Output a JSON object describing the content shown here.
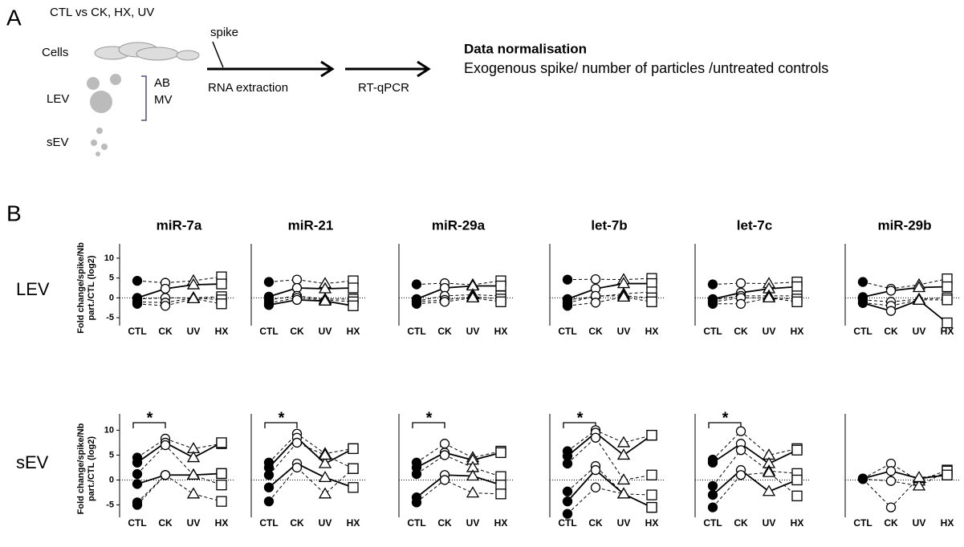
{
  "panel_a": {
    "label": "A",
    "conditions": "CTL vs CK, HX, UV",
    "cells": "Cells",
    "lev": "LEV",
    "sev": "sEV",
    "ab": "AB",
    "mv": "MV",
    "spike": "spike",
    "step1": "RNA extraction",
    "step2": "RT-qPCR",
    "norm_title": "Data normalisation",
    "norm_text": "Exogenous spike/ number of particles /untreated controls"
  },
  "panel_b": {
    "label": "B",
    "rows": [
      "LEV",
      "sEV"
    ]
  },
  "chart_data": [
    {
      "type": "line",
      "title": "miR-7a",
      "categories": [
        "CTL",
        "CK",
        "UV",
        "HX"
      ],
      "markers": [
        "filled-circle",
        "circle",
        "triangle",
        "square"
      ],
      "color": "#000000",
      "ylim": [
        -7,
        12
      ],
      "yticks": [
        -5,
        0,
        5,
        10
      ],
      "ylabel": [
        "Fold change/spike/Nb",
        "part./CTL (log2)"
      ],
      "reference_line": 0,
      "series": [
        {
          "values": [
            4.3,
            3.8,
            4.3,
            5.3
          ],
          "line_style": "dashed"
        },
        {
          "values": [
            0,
            2.3,
            3.3,
            3.5
          ],
          "line_style": "solid"
        },
        {
          "values": [
            -0.3,
            0,
            0,
            0.3
          ],
          "line_style": "dashed"
        },
        {
          "values": [
            -1,
            -1.2,
            0,
            -0.5
          ],
          "line_style": "dashed"
        },
        {
          "values": [
            -1.5,
            -2,
            -0.2,
            -1.5
          ],
          "line_style": "dashed"
        }
      ]
    },
    {
      "type": "line",
      "title": "miR-21",
      "categories": [
        "CTL",
        "CK",
        "UV",
        "HX"
      ],
      "markers": [
        "filled-circle",
        "circle",
        "triangle",
        "square"
      ],
      "color": "#000000",
      "ylim": [
        -7,
        12
      ],
      "reference_line": 0,
      "series": [
        {
          "values": [
            4,
            4.6,
            3.6,
            4.3
          ],
          "line_style": "dashed"
        },
        {
          "values": [
            0.3,
            2.5,
            2.3,
            2.5
          ],
          "line_style": "solid"
        },
        {
          "values": [
            -0.5,
            0.5,
            -0.3,
            -0.3
          ],
          "line_style": "dashed"
        },
        {
          "values": [
            -1.3,
            0,
            -0.5,
            -1
          ],
          "line_style": "dashed"
        },
        {
          "values": [
            -1.8,
            -0.5,
            -0.8,
            -2
          ],
          "line_style": "solid"
        }
      ]
    },
    {
      "type": "line",
      "title": "miR-29a",
      "categories": [
        "CTL",
        "CK",
        "UV",
        "HX"
      ],
      "markers": [
        "filled-circle",
        "circle",
        "triangle",
        "square"
      ],
      "color": "#000000",
      "ylim": [
        -7,
        12
      ],
      "reference_line": 0,
      "series": [
        {
          "values": [
            3.4,
            3.7,
            3.3,
            4.3
          ],
          "line_style": "dashed"
        },
        {
          "values": [
            -0.3,
            2.5,
            3,
            3
          ],
          "line_style": "solid"
        },
        {
          "values": [
            -0.8,
            0.5,
            0.8,
            0.5
          ],
          "line_style": "dashed"
        },
        {
          "values": [
            -1,
            -0.5,
            0.3,
            -0.3
          ],
          "line_style": "dashed"
        },
        {
          "values": [
            -1.5,
            -1,
            0,
            -1
          ],
          "line_style": "dashed"
        }
      ]
    },
    {
      "type": "line",
      "title": "let-7b",
      "categories": [
        "CTL",
        "CK",
        "UV",
        "HX"
      ],
      "markers": [
        "filled-circle",
        "circle",
        "triangle",
        "square"
      ],
      "color": "#000000",
      "ylim": [
        -7,
        12
      ],
      "reference_line": 0,
      "series": [
        {
          "values": [
            4.6,
            4.7,
            4.6,
            4.9
          ],
          "line_style": "dashed"
        },
        {
          "values": [
            -0.3,
            2.3,
            3.6,
            3.6
          ],
          "line_style": "solid"
        },
        {
          "values": [
            -0.5,
            0.3,
            1,
            1.5
          ],
          "line_style": "dashed"
        },
        {
          "values": [
            -1.3,
            0.5,
            0.5,
            0
          ],
          "line_style": "dashed"
        },
        {
          "values": [
            -2,
            -1.2,
            0.2,
            -1
          ],
          "line_style": "dashed"
        }
      ]
    },
    {
      "type": "line",
      "title": "let-7c",
      "categories": [
        "CTL",
        "CK",
        "UV",
        "HX"
      ],
      "markers": [
        "filled-circle",
        "circle",
        "triangle",
        "square"
      ],
      "color": "#000000",
      "ylim": [
        -7,
        12
      ],
      "reference_line": 0,
      "series": [
        {
          "values": [
            3.4,
            3.7,
            3.6,
            4
          ],
          "line_style": "dashed"
        },
        {
          "values": [
            -0.3,
            1.3,
            2.3,
            2.8
          ],
          "line_style": "solid"
        },
        {
          "values": [
            -0.5,
            0.5,
            0.5,
            0.5
          ],
          "line_style": "dashed"
        },
        {
          "values": [
            -1,
            0,
            0,
            -0.3
          ],
          "line_style": "dashed"
        },
        {
          "values": [
            -1.5,
            -1.5,
            0,
            -1
          ],
          "line_style": "dashed"
        }
      ]
    },
    {
      "type": "line",
      "title": "miR-29b",
      "categories": [
        "CTL",
        "CK",
        "UV",
        "HX"
      ],
      "markers": [
        "filled-circle",
        "circle",
        "triangle",
        "square"
      ],
      "color": "#000000",
      "ylim": [
        -7,
        12
      ],
      "reference_line": 0,
      "series": [
        {
          "values": [
            4,
            2.3,
            3.3,
            4.8
          ],
          "line_style": "dashed"
        },
        {
          "values": [
            0.2,
            1.8,
            2.6,
            2.8
          ],
          "line_style": "solid"
        },
        {
          "values": [
            -0.5,
            -1,
            -0.3,
            0
          ],
          "line_style": "dashed"
        },
        {
          "values": [
            -1.2,
            -2,
            -0.5,
            -0.5
          ],
          "line_style": "dashed"
        },
        {
          "values": [
            -1.3,
            -3.3,
            -0.6,
            -6.3
          ],
          "line_style": "solid"
        }
      ]
    },
    {
      "type": "line",
      "categories": [
        "CTL",
        "CK",
        "UV",
        "HX"
      ],
      "markers": [
        "filled-circle",
        "circle",
        "triangle",
        "square"
      ],
      "color": "#000000",
      "ylim": [
        -7.5,
        12
      ],
      "yticks": [
        -5,
        0,
        5,
        10
      ],
      "ylabel": [
        "Fold change/spike/Nb",
        "part./CTL (log2)"
      ],
      "reference_line": 0,
      "annotation": "*",
      "series": [
        {
          "values": [
            4.5,
            8.3,
            6.3,
            7.3
          ],
          "line_style": "dashed"
        },
        {
          "values": [
            3.5,
            7.5,
            4.5,
            7.5
          ],
          "line_style": "solid"
        },
        {
          "values": [
            1.2,
            7,
            1,
            -1
          ],
          "line_style": "dashed"
        },
        {
          "values": [
            -0.8,
            1,
            1,
            1.3
          ],
          "line_style": "solid"
        },
        {
          "values": [
            -4.5,
            1,
            -2.8,
            -4.3
          ],
          "line_style": "dashed"
        },
        {
          "values": [
            -5,
            1,
            1,
            1.3
          ],
          "line_style": "dashed"
        }
      ]
    },
    {
      "type": "line",
      "categories": [
        "CTL",
        "CK",
        "UV",
        "HX"
      ],
      "markers": [
        "filled-circle",
        "circle",
        "triangle",
        "square"
      ],
      "color": "#000000",
      "ylim": [
        -7.5,
        12
      ],
      "reference_line": 0,
      "annotation": "*",
      "series": [
        {
          "values": [
            3.5,
            9.3,
            5.3,
            6.3
          ],
          "line_style": "dashed"
        },
        {
          "values": [
            2.5,
            8.5,
            3.3,
            6.3
          ],
          "line_style": "solid"
        },
        {
          "values": [
            1,
            7.5,
            5,
            2.3
          ],
          "line_style": "dashed"
        },
        {
          "values": [
            -1.5,
            3.3,
            0.5,
            -1.5
          ],
          "line_style": "solid"
        },
        {
          "values": [
            -4.3,
            2.5,
            -2.8,
            2.3
          ],
          "line_style": "dashed"
        }
      ]
    },
    {
      "type": "line",
      "categories": [
        "CTL",
        "CK",
        "UV",
        "HX"
      ],
      "markers": [
        "filled-circle",
        "circle",
        "triangle",
        "square"
      ],
      "color": "#000000",
      "ylim": [
        -7.5,
        12
      ],
      "reference_line": 0,
      "annotation": "*",
      "series": [
        {
          "values": [
            3.5,
            7.3,
            4.5,
            5.8
          ],
          "line_style": "dashed"
        },
        {
          "values": [
            2.5,
            5.5,
            4,
            5.5
          ],
          "line_style": "solid"
        },
        {
          "values": [
            1.2,
            5,
            2.5,
            0.7
          ],
          "line_style": "dashed"
        },
        {
          "values": [
            -3.5,
            1,
            0.8,
            -1
          ],
          "line_style": "solid"
        },
        {
          "values": [
            -4.5,
            0,
            -2.6,
            -2.8
          ],
          "line_style": "dashed"
        }
      ]
    },
    {
      "type": "line",
      "categories": [
        "CTL",
        "CK",
        "UV",
        "HX"
      ],
      "markers": [
        "filled-circle",
        "circle",
        "triangle",
        "square"
      ],
      "color": "#000000",
      "ylim": [
        -7.5,
        12
      ],
      "reference_line": 0,
      "annotation": "*",
      "series": [
        {
          "values": [
            5.8,
            10,
            7.5,
            9
          ],
          "line_style": "dashed"
        },
        {
          "values": [
            4.8,
            9.5,
            5,
            9
          ],
          "line_style": "solid"
        },
        {
          "values": [
            3.3,
            8.5,
            0,
            1
          ],
          "line_style": "dashed"
        },
        {
          "values": [
            -2.3,
            2.8,
            -2.8,
            -3
          ],
          "line_style": "dashed"
        },
        {
          "values": [
            -4.3,
            2,
            -2.8,
            -5.5
          ],
          "line_style": "solid"
        },
        {
          "values": [
            -6.8,
            -1.5,
            -2.8,
            -5.5
          ],
          "line_style": "dashed"
        }
      ]
    },
    {
      "type": "line",
      "categories": [
        "CTL",
        "CK",
        "UV",
        "HX"
      ],
      "markers": [
        "filled-circle",
        "circle",
        "triangle",
        "square"
      ],
      "color": "#000000",
      "ylim": [
        -7.5,
        12
      ],
      "reference_line": 0,
      "annotation": "*",
      "series": [
        {
          "values": [
            4.1,
            9.8,
            5,
            6.3
          ],
          "line_style": "dashed"
        },
        {
          "values": [
            3.5,
            7.3,
            3.3,
            6
          ],
          "line_style": "solid"
        },
        {
          "values": [
            -1.2,
            6,
            1.8,
            1.3
          ],
          "line_style": "dashed"
        },
        {
          "values": [
            -3,
            2,
            -2.3,
            0
          ],
          "line_style": "solid"
        },
        {
          "values": [
            -5.5,
            1,
            1.5,
            -3.2
          ],
          "line_style": "dashed"
        }
      ]
    },
    {
      "type": "line",
      "categories": [
        "CTL",
        "CK",
        "UV",
        "HX"
      ],
      "markers": [
        "filled-circle",
        "circle",
        "triangle",
        "square"
      ],
      "color": "#000000",
      "ylim": [
        -7.5,
        12
      ],
      "reference_line": 0,
      "series": [
        {
          "values": [
            0.3,
            3.3,
            -0.2,
            2
          ],
          "line_style": "dashed"
        },
        {
          "values": [
            0.3,
            1.8,
            0.3,
            1
          ],
          "line_style": "solid"
        },
        {
          "values": [
            0.2,
            -0.2,
            -1.2,
            1.8
          ],
          "line_style": "dashed"
        },
        {
          "values": [
            0.2,
            -5.5,
            0.5,
            1
          ],
          "line_style": "dashed"
        }
      ]
    }
  ]
}
